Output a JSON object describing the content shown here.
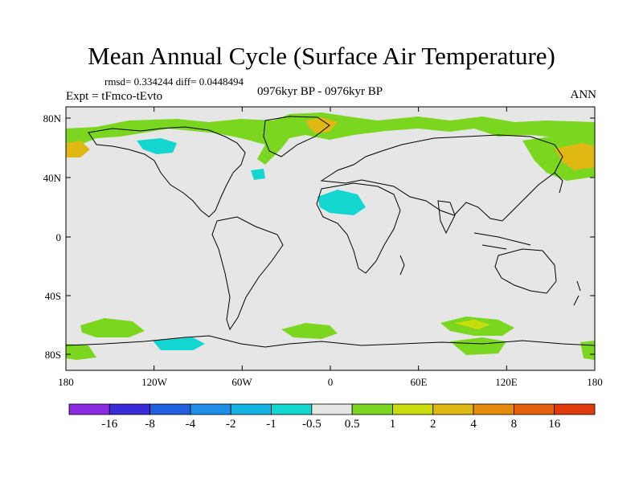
{
  "figure": {
    "title": "Mean Annual Cycle (Surface Air Temperature)",
    "stats": "rmsd= 0.334244 diff= 0.0448494",
    "experiment": "Expt = tFmco-tEvto",
    "period": "0976kyr BP - 0976kyr BP",
    "season": "ANN"
  },
  "map": {
    "lat_ticks": [
      "80N",
      "40N",
      "0",
      "40S",
      "80S"
    ],
    "lon_ticks": [
      "180",
      "120W",
      "60W",
      "0",
      "60E",
      "120E",
      "180"
    ],
    "background_color": "#e6e6e6"
  },
  "colorbar": {
    "labels": [
      "-16",
      "-8",
      "-4",
      "-2",
      "-1",
      "-0.5",
      "0.5",
      "1",
      "2",
      "4",
      "8",
      "16"
    ],
    "colors": [
      "#8a2be2",
      "#3a2bd9",
      "#1f5fe0",
      "#1e8ee8",
      "#12b3e3",
      "#14d6d0",
      "#e6e6e6",
      "#7ad61e",
      "#c8dc0e",
      "#e0b814",
      "#e68a0c",
      "#e5600c",
      "#e03a0c"
    ]
  }
}
